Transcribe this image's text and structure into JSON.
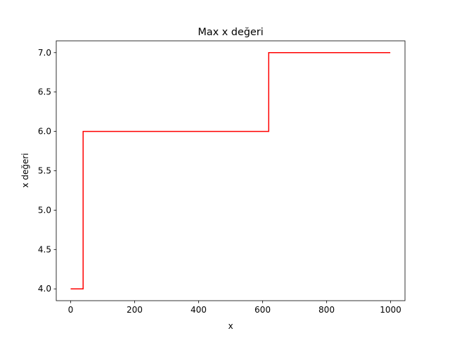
{
  "chart_data": {
    "type": "line",
    "title": "Max x değeri",
    "xlabel": "x",
    "ylabel": "x değeri",
    "xlim": [
      -45,
      1045
    ],
    "ylim": [
      3.85,
      7.15
    ],
    "xticks": [
      0,
      200,
      400,
      600,
      800,
      1000
    ],
    "yticks": [
      4.0,
      4.5,
      5.0,
      5.5,
      6.0,
      6.5,
      7.0
    ],
    "xtick_labels": [
      "0",
      "200",
      "400",
      "600",
      "800",
      "1000"
    ],
    "ytick_labels": [
      "4.0",
      "4.5",
      "5.0",
      "5.5",
      "6.0",
      "6.5",
      "7.0"
    ],
    "grid": false,
    "series": [
      {
        "color": "#ff0000",
        "step": true,
        "x": [
          0,
          39,
          39,
          619,
          619,
          999
        ],
        "y": [
          4,
          4,
          6,
          6,
          7,
          7
        ]
      }
    ]
  }
}
